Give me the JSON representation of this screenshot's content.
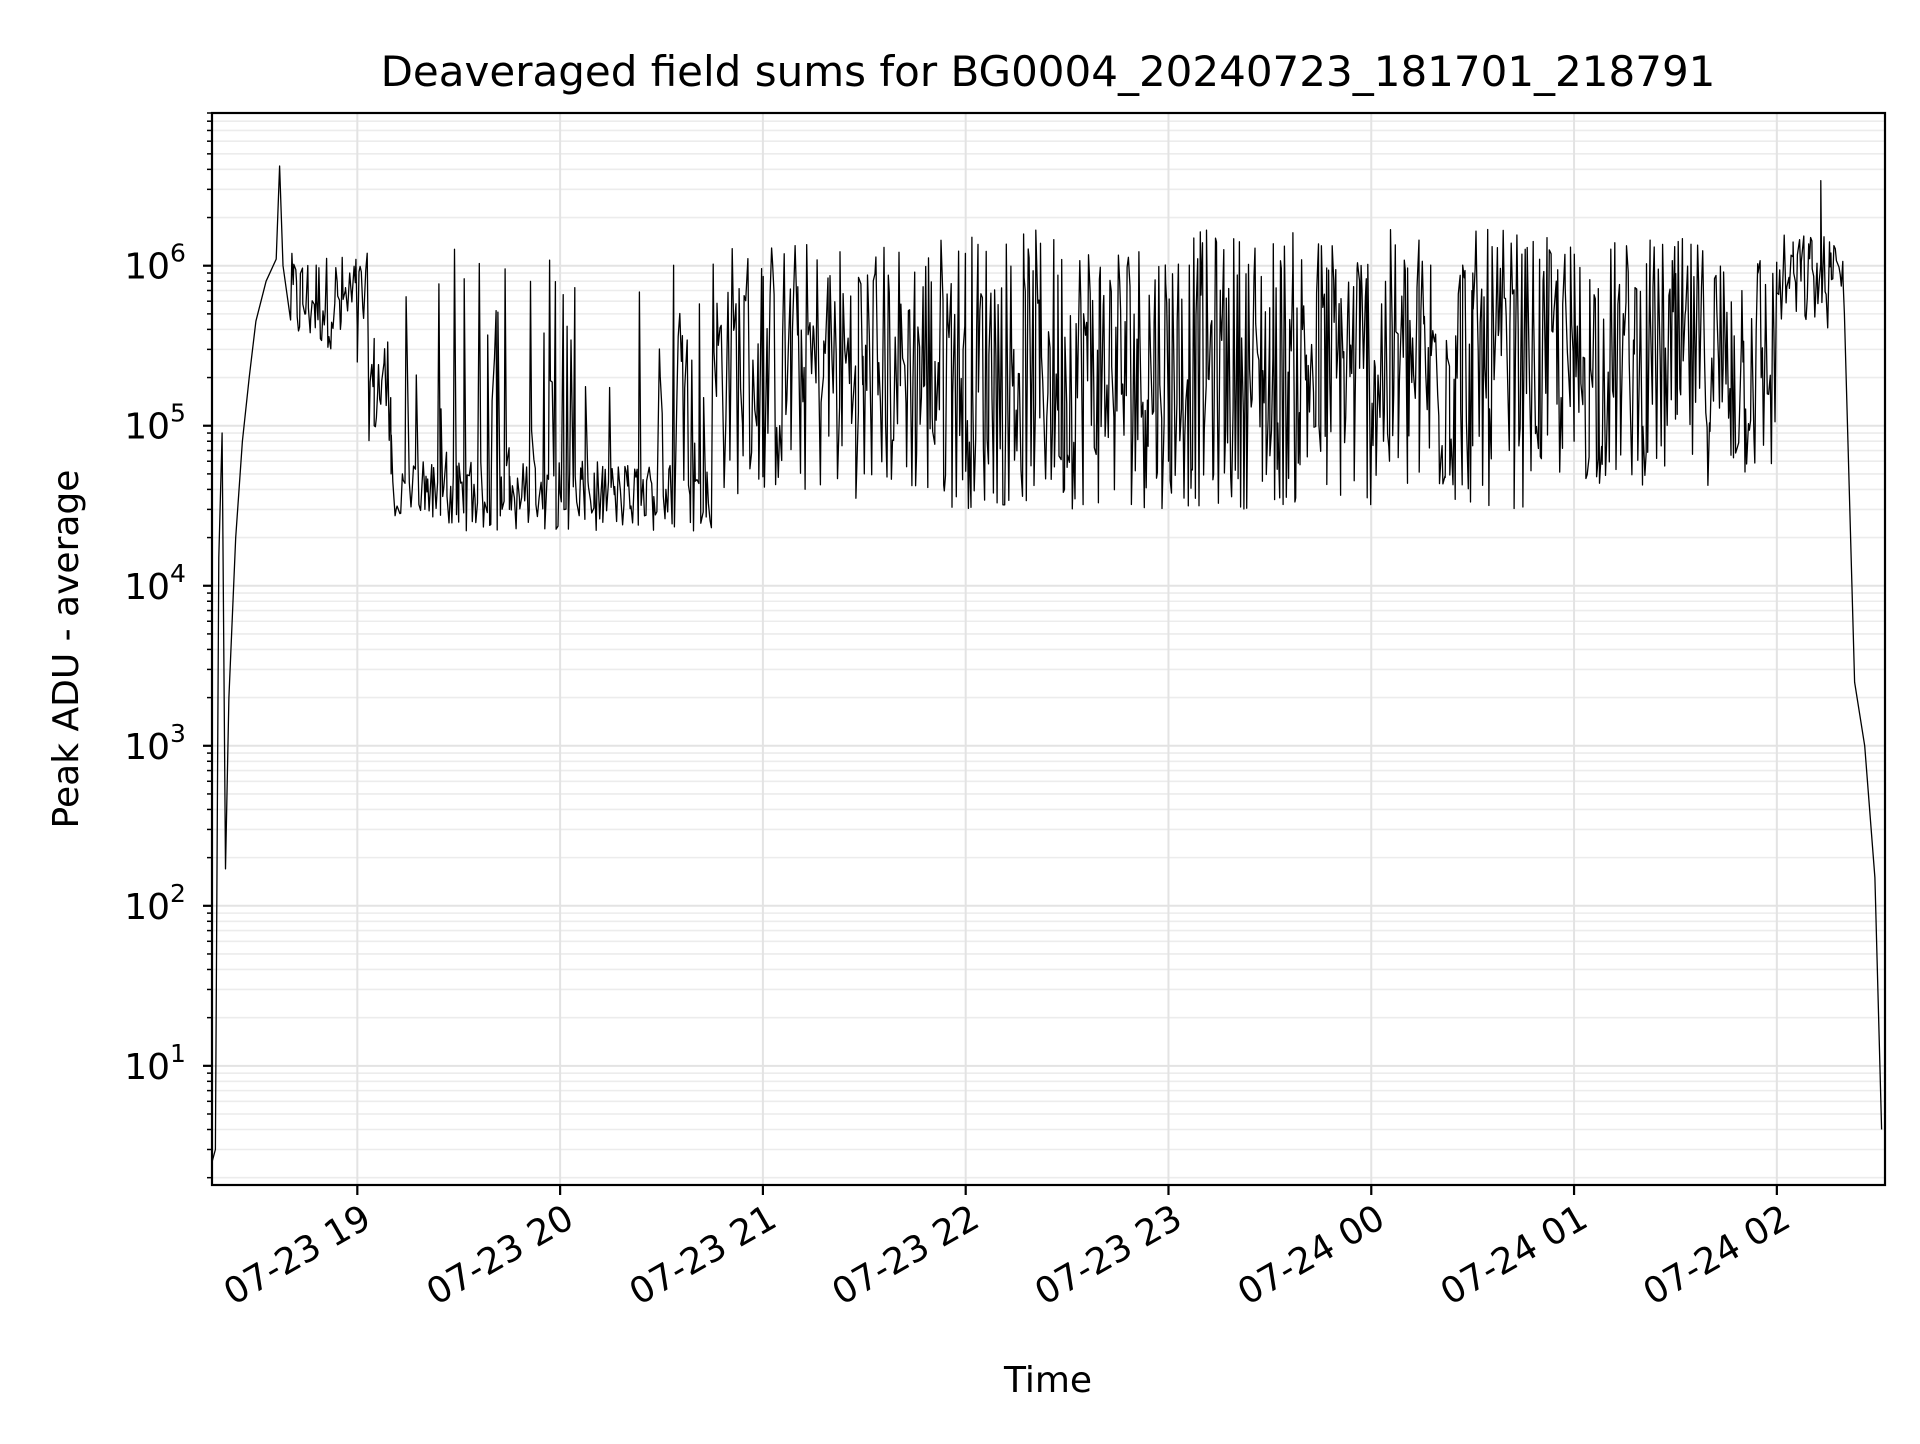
{
  "chart_data": {
    "type": "line",
    "title": "Deaveraged field sums for BG0004_20240723_181701_218791",
    "xlabel": "Time",
    "ylabel": "Peak ADU - average",
    "yscale": "log",
    "ylim": [
      1.8,
      9000000
    ],
    "xlim": [
      "2024-07-23 18:17",
      "2024-07-24 02:32"
    ],
    "grid": true,
    "legend": "none",
    "line_color": "#000000",
    "x_ticks": [
      {
        "value": "2024-07-23 19:00",
        "label": "07-23 19"
      },
      {
        "value": "2024-07-23 20:00",
        "label": "07-23 20"
      },
      {
        "value": "2024-07-23 21:00",
        "label": "07-23 21"
      },
      {
        "value": "2024-07-23 22:00",
        "label": "07-23 22"
      },
      {
        "value": "2024-07-23 23:00",
        "label": "07-23 23"
      },
      {
        "value": "2024-07-24 00:00",
        "label": "07-24 00"
      },
      {
        "value": "2024-07-24 01:00",
        "label": "07-24 01"
      },
      {
        "value": "2024-07-24 02:00",
        "label": "07-24 02"
      }
    ],
    "y_ticks": [
      {
        "value": 10,
        "base": "10",
        "exp": "1"
      },
      {
        "value": 100,
        "base": "10",
        "exp": "2"
      },
      {
        "value": 1000,
        "base": "10",
        "exp": "3"
      },
      {
        "value": 10000,
        "base": "10",
        "exp": "4"
      },
      {
        "value": 100000,
        "base": "10",
        "exp": "5"
      },
      {
        "value": 1000000,
        "base": "10",
        "exp": "6"
      }
    ],
    "series": [
      {
        "points": [
          [
            "2024-07-23 18:17",
            2.5
          ],
          [
            "2024-07-23 18:18",
            3
          ],
          [
            "2024-07-23 18:19",
            15000
          ],
          [
            "2024-07-23 18:20",
            90000
          ],
          [
            "2024-07-23 18:21",
            170
          ],
          [
            "2024-07-23 18:22",
            2000
          ],
          [
            "2024-07-23 18:24",
            20000
          ],
          [
            "2024-07-23 18:26",
            80000
          ],
          [
            "2024-07-23 18:28",
            200000
          ],
          [
            "2024-07-23 18:30",
            450000
          ],
          [
            "2024-07-23 18:33",
            800000
          ],
          [
            "2024-07-23 18:36",
            1100000
          ],
          [
            "2024-07-23 18:37",
            4200000
          ],
          [
            "2024-07-23 18:38",
            1000000
          ],
          [
            "2024-07-23 18:42",
            800000
          ],
          [
            "2024-07-23 18:48",
            600000
          ],
          [
            "2024-07-23 18:55",
            400000
          ],
          [
            "2024-07-23 19:00",
            250000
          ],
          [
            "2024-07-23 19:05",
            100000
          ],
          [
            "2024-07-23 19:10",
            50000
          ],
          [
            "2024-07-23 19:20",
            30000
          ],
          [
            "2024-07-23 19:30",
            25000
          ],
          [
            "2024-07-23 19:45",
            30000
          ],
          [
            "2024-07-23 20:00",
            38000
          ],
          [
            "2024-07-23 20:20",
            42000
          ],
          [
            "2024-07-23 20:40",
            45000
          ],
          [
            "2024-07-23 21:00",
            48000
          ],
          [
            "2024-07-23 21:30",
            50000
          ],
          [
            "2024-07-23 22:00",
            52000
          ],
          [
            "2024-07-23 22:30",
            55000
          ],
          [
            "2024-07-23 23:00",
            60000
          ],
          [
            "2024-07-23 23:30",
            65000
          ],
          [
            "2024-07-24 00:00",
            70000
          ],
          [
            "2024-07-24 00:30",
            75000
          ],
          [
            "2024-07-24 01:00",
            80000
          ],
          [
            "2024-07-24 01:30",
            110000
          ],
          [
            "2024-07-24 01:50",
            250000
          ],
          [
            "2024-07-24 02:05",
            900000
          ],
          [
            "2024-07-24 02:10",
            1500000
          ],
          [
            "2024-07-24 02:13",
            3400000
          ],
          [
            "2024-07-24 02:16",
            1200000
          ],
          [
            "2024-07-24 02:20",
            500000
          ],
          [
            "2024-07-24 02:23",
            2500
          ],
          [
            "2024-07-24 02:26",
            1000
          ],
          [
            "2024-07-24 02:29",
            150
          ],
          [
            "2024-07-24 02:31",
            4
          ]
        ],
        "spike_segments": [
          {
            "from": "2024-07-23 18:40",
            "to": "2024-07-23 19:03",
            "low": 300000,
            "high": 1200000,
            "count": 60
          },
          {
            "from": "2024-07-23 19:03",
            "to": "2024-07-23 19:10",
            "low": 80000,
            "high": 400000,
            "count": 20
          },
          {
            "from": "2024-07-23 19:10",
            "to": "2024-07-23 20:45",
            "low": 22000,
            "high": 60000,
            "count": 220,
            "tall_spikes": 45,
            "tall_max": 1300000
          },
          {
            "from": "2024-07-23 20:45",
            "to": "2024-07-23 21:45",
            "low": 35000,
            "high": 1500000,
            "count": 140
          },
          {
            "from": "2024-07-23 21:45",
            "to": "2024-07-24 00:45",
            "low": 30000,
            "high": 1700000,
            "count": 520
          },
          {
            "from": "2024-07-24 00:45",
            "to": "2024-07-24 02:00",
            "low": 42000,
            "high": 1500000,
            "count": 200
          },
          {
            "from": "2024-07-24 02:00",
            "to": "2024-07-24 02:20",
            "low": 400000,
            "high": 1600000,
            "count": 50
          }
        ]
      }
    ]
  }
}
